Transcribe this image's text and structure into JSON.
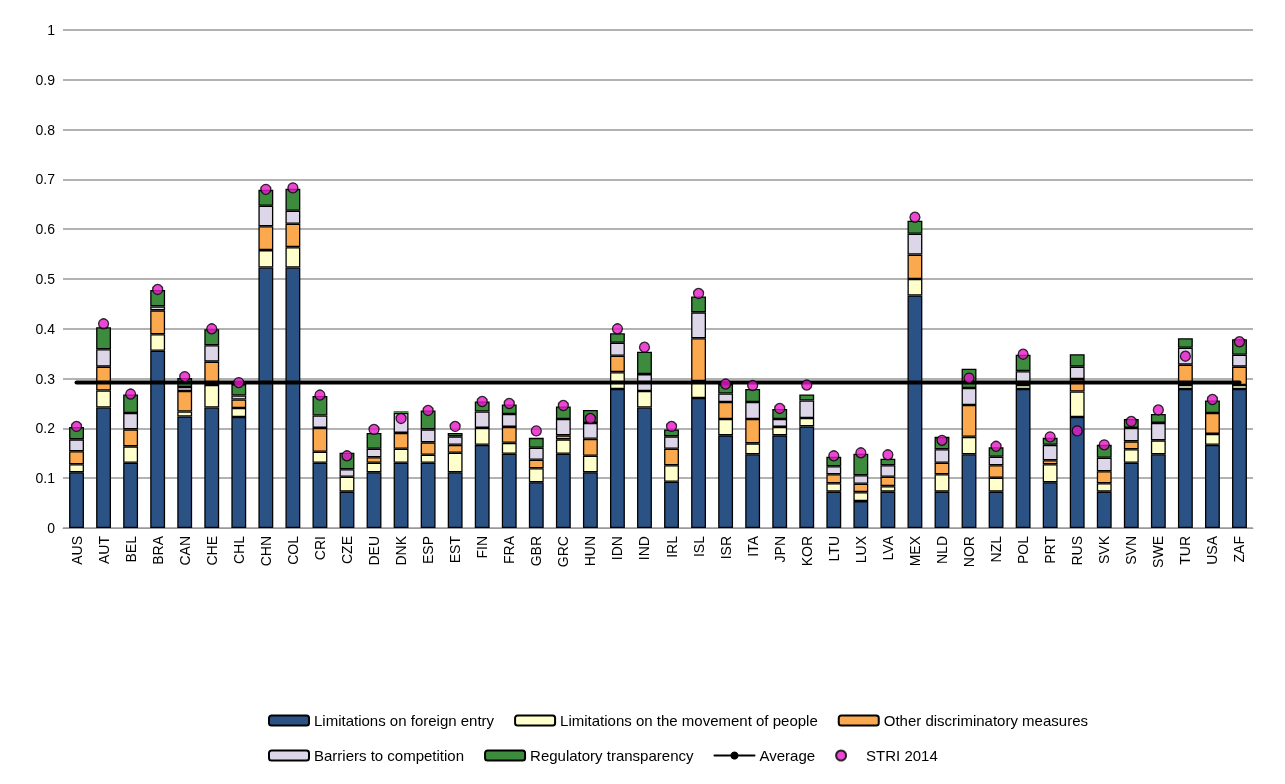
{
  "chart_data": {
    "type": "bar",
    "stacked": true,
    "grid": "y",
    "legend": "bottom",
    "categories": [
      "AUS",
      "AUT",
      "BEL",
      "BRA",
      "CAN",
      "CHE",
      "CHL",
      "CHN",
      "COL",
      "CRI",
      "CZE",
      "DEU",
      "DNK",
      "ESP",
      "EST",
      "FIN",
      "FRA",
      "GBR",
      "GRC",
      "HUN",
      "IDN",
      "IND",
      "IRL",
      "ISL",
      "ISR",
      "ITA",
      "JPN",
      "KOR",
      "LTU",
      "LUX",
      "LVA",
      "MEX",
      "NLD",
      "NOR",
      "NZL",
      "POL",
      "PRT",
      "RUS",
      "SVK",
      "SVN",
      "SWE",
      "TUR",
      "USA",
      "ZAF"
    ],
    "ylim": [
      0,
      1
    ],
    "yticks": [
      0,
      0.1,
      0.2,
      0.3,
      0.4,
      0.5,
      0.6,
      0.7,
      0.8,
      0.9,
      1
    ],
    "series": [
      {
        "name": "Limitations on foreign entry",
        "color": "#2b5285",
        "values": [
          0.112,
          0.242,
          0.131,
          0.356,
          0.224,
          0.242,
          0.223,
          0.523,
          0.523,
          0.131,
          0.073,
          0.112,
          0.131,
          0.131,
          0.112,
          0.167,
          0.149,
          0.092,
          0.149,
          0.112,
          0.279,
          0.242,
          0.093,
          0.261,
          0.186,
          0.148,
          0.186,
          0.204,
          0.073,
          0.054,
          0.073,
          0.467,
          0.073,
          0.148,
          0.073,
          0.279,
          0.092,
          0.223,
          0.073,
          0.131,
          0.148,
          0.279,
          0.167,
          0.279
        ]
      },
      {
        "name": "Limitations on the movement of people",
        "color": "#ffffcc",
        "values": [
          0.016,
          0.034,
          0.033,
          0.033,
          0.01,
          0.045,
          0.018,
          0.035,
          0.041,
          0.022,
          0.03,
          0.019,
          0.028,
          0.016,
          0.039,
          0.034,
          0.022,
          0.028,
          0.029,
          0.033,
          0.034,
          0.033,
          0.033,
          0.034,
          0.033,
          0.022,
          0.017,
          0.017,
          0.017,
          0.018,
          0.011,
          0.033,
          0.035,
          0.035,
          0.028,
          0.008,
          0.036,
          0.051,
          0.017,
          0.027,
          0.028,
          0.008,
          0.022,
          0.008
        ]
      },
      {
        "name": "Other discriminatory measures",
        "color": "#fba94f",
        "values": [
          0.026,
          0.048,
          0.034,
          0.048,
          0.041,
          0.047,
          0.017,
          0.048,
          0.047,
          0.048,
          0,
          0.011,
          0.032,
          0.025,
          0.016,
          0,
          0.032,
          0.017,
          0.008,
          0.034,
          0.033,
          0,
          0.033,
          0.086,
          0.034,
          0.049,
          0,
          0,
          0.018,
          0.017,
          0.019,
          0.049,
          0.023,
          0.064,
          0.025,
          0,
          0.008,
          0.025,
          0.024,
          0.016,
          0,
          0.041,
          0.042,
          0.037
        ]
      },
      {
        "name": "Barriers to competition",
        "color": "#dcd6e8",
        "values": [
          0.024,
          0.035,
          0.033,
          0.008,
          0.008,
          0.033,
          0.008,
          0.041,
          0.026,
          0.025,
          0.015,
          0.017,
          0.04,
          0.026,
          0.017,
          0.033,
          0.026,
          0.024,
          0.033,
          0.032,
          0.026,
          0.034,
          0.025,
          0.052,
          0.017,
          0.034,
          0.016,
          0.035,
          0.016,
          0.017,
          0.023,
          0.042,
          0.027,
          0.034,
          0.017,
          0.028,
          0.031,
          0.025,
          0.027,
          0.027,
          0.035,
          0.034,
          0,
          0.024
        ]
      },
      {
        "name": "Regulatory transparency",
        "color": "#3d8c3d",
        "values": [
          0.025,
          0.044,
          0.037,
          0.033,
          0.018,
          0.032,
          0.023,
          0.032,
          0.044,
          0.039,
          0.033,
          0.032,
          0.004,
          0.038,
          0.007,
          0.02,
          0.019,
          0.02,
          0.025,
          0.026,
          0.019,
          0.045,
          0.014,
          0.032,
          0.019,
          0.026,
          0.02,
          0.012,
          0.019,
          0.043,
          0.013,
          0.026,
          0.025,
          0.039,
          0.019,
          0.033,
          0.014,
          0.025,
          0.026,
          0.018,
          0.018,
          0.019,
          0.025,
          0.031
        ]
      },
      {
        "name": "Average",
        "type": "line",
        "color": "#000000",
        "marker": "none",
        "values": [
          0.292,
          0.292,
          0.292,
          0.292,
          0.292,
          0.292,
          0.292,
          0.292,
          0.292,
          0.292,
          0.292,
          0.292,
          0.292,
          0.292,
          0.292,
          0.292,
          0.292,
          0.292,
          0.292,
          0.292,
          0.292,
          0.292,
          0.292,
          0.292,
          0.292,
          0.292,
          0.292,
          0.292,
          0.292,
          0.292,
          0.292,
          0.292,
          0.292,
          0.292,
          0.292,
          0.292,
          0.292,
          0.292,
          0.292,
          0.292,
          0.292,
          0.292,
          0.292,
          0.292
        ]
      },
      {
        "name": "STRI 2014",
        "type": "scatter",
        "color": "#e619c8",
        "marker": "circle",
        "values": [
          0.204,
          0.41,
          0.269,
          0.479,
          0.304,
          0.4,
          0.292,
          0.68,
          0.683,
          0.267,
          0.145,
          0.198,
          0.22,
          0.236,
          0.204,
          0.254,
          0.25,
          0.195,
          0.246,
          0.22,
          0.4,
          0.363,
          0.204,
          0.471,
          0.289,
          0.286,
          0.24,
          0.287,
          0.145,
          0.151,
          0.147,
          0.624,
          0.176,
          0.301,
          0.164,
          0.349,
          0.183,
          0.195,
          0.167,
          0.214,
          0.237,
          0.345,
          0.258,
          0.374
        ]
      }
    ]
  }
}
